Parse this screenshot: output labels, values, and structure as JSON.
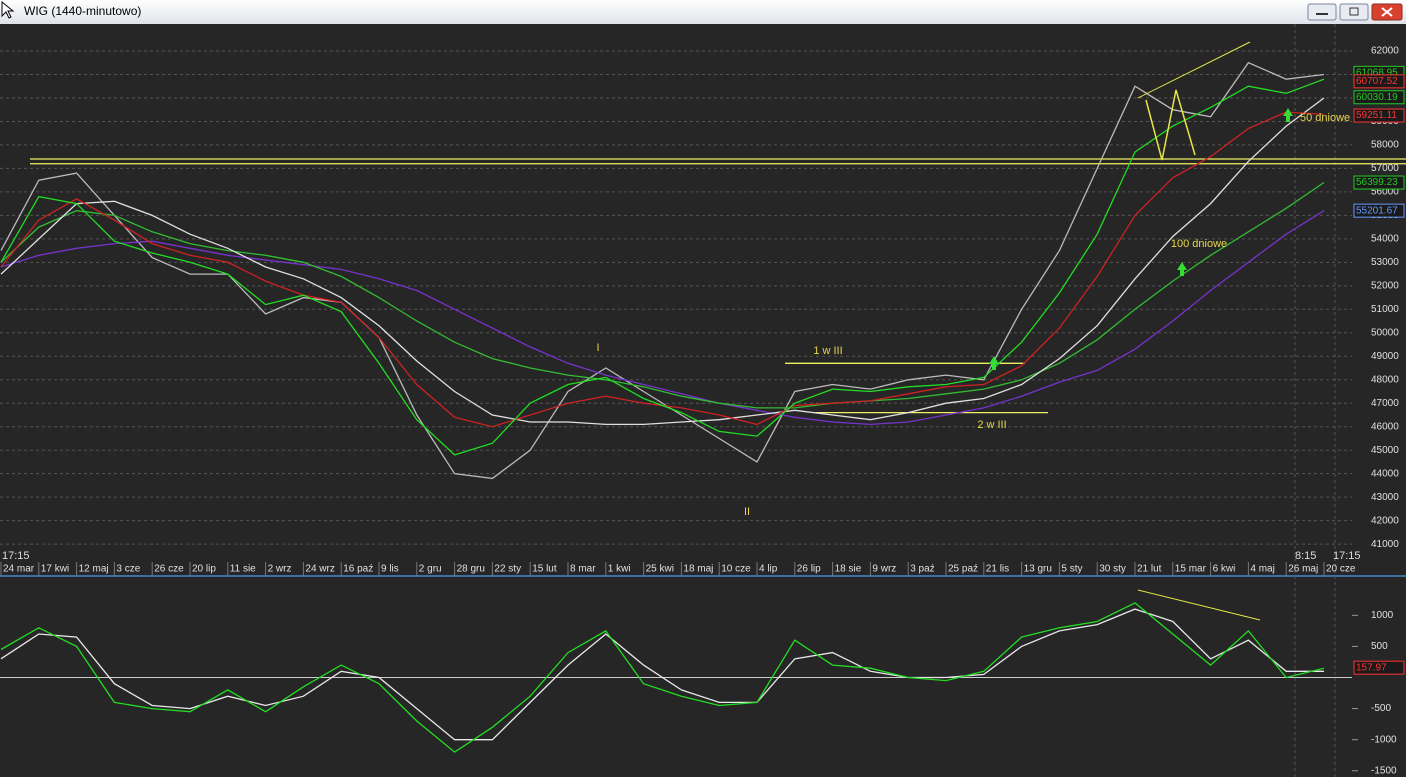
{
  "window": {
    "title": "WIG (1440-minutowo)"
  },
  "chart_data": [
    {
      "type": "line",
      "categories": [
        "24 mar",
        "17 kwi",
        "12 maj",
        "3 cze",
        "26 cze",
        "20 lip",
        "11 sie",
        "2 wrz",
        "24 wrz",
        "16 paź",
        "9 lis",
        "2 gru",
        "28 gru",
        "22 sty",
        "15 lut",
        "8 mar",
        "1 kwi",
        "25 kwi",
        "18 maj",
        "10 cze",
        "4 lip",
        "26 lip",
        "18 sie",
        "9 wrz",
        "3 paź",
        "25 paź",
        "21 lis",
        "13 gru",
        "5 sty",
        "30 sty",
        "21 lut",
        "15 mar",
        "6 kwi",
        "4 maj",
        "26 maj",
        "20 cze"
      ],
      "series": [
        {
          "color": "#bbbbbb",
          "values": [
            53500,
            56500,
            56800,
            55000,
            53200,
            52500,
            52500,
            50800,
            51500,
            51300,
            49800,
            46500,
            44000,
            43800,
            45000,
            47500,
            48500,
            47500,
            46500,
            45500,
            44500,
            47500,
            47800,
            47600,
            48000,
            48200,
            48000,
            51000,
            53500,
            57000,
            60500,
            59500,
            59200,
            61500,
            60800,
            61000
          ]
        },
        {
          "color": "#7733cc",
          "values": [
            52800,
            53300,
            53600,
            53800,
            53900,
            53600,
            53300,
            53100,
            52900,
            52700,
            52300,
            51800,
            51000,
            50200,
            49400,
            48700,
            48200,
            47800,
            47400,
            47000,
            46700,
            46400,
            46200,
            46100,
            46200,
            46500,
            46800,
            47300,
            47900,
            48400,
            49300,
            50500,
            51800,
            53000,
            54200,
            55200
          ]
        },
        {
          "color": "#33bb33",
          "values": [
            53000,
            54500,
            55200,
            55000,
            54300,
            53800,
            53500,
            53300,
            53000,
            52400,
            51500,
            50500,
            49600,
            48900,
            48500,
            48200,
            48000,
            47700,
            47300,
            47000,
            46800,
            46800,
            47000,
            47100,
            47200,
            47400,
            47600,
            48000,
            48700,
            49700,
            51000,
            52200,
            53300,
            54300,
            55300,
            56400
          ]
        },
        {
          "color": "#e0e0e0",
          "values": [
            52500,
            54000,
            55500,
            55600,
            55000,
            54200,
            53600,
            52800,
            52300,
            51500,
            50300,
            48800,
            47500,
            46500,
            46200,
            46200,
            46100,
            46100,
            46200,
            46300,
            46500,
            46700,
            46500,
            46300,
            46600,
            47000,
            47200,
            47800,
            48900,
            50300,
            52300,
            54100,
            55500,
            57300,
            58800,
            60000
          ]
        },
        {
          "color": "#cc2222",
          "values": [
            52800,
            54800,
            55700,
            54800,
            53800,
            53300,
            53000,
            52200,
            51600,
            51300,
            49800,
            47800,
            46400,
            46000,
            46500,
            47000,
            47300,
            47000,
            46800,
            46500,
            46100,
            46900,
            47000,
            47100,
            47400,
            47700,
            47800,
            48600,
            50200,
            52400,
            55000,
            56600,
            57500,
            58700,
            59400,
            59300
          ]
        },
        {
          "color": "#22dd22",
          "values": [
            53000,
            55800,
            55500,
            53900,
            53400,
            53000,
            52500,
            51200,
            51600,
            50900,
            48700,
            46300,
            44800,
            45300,
            47000,
            47800,
            48100,
            47200,
            46600,
            45800,
            45600,
            47000,
            47600,
            47500,
            47700,
            47800,
            48100,
            49600,
            51700,
            54200,
            57700,
            58800,
            59600,
            60500,
            60200,
            60800
          ]
        }
      ],
      "levels": [
        57200,
        57400,
        48700,
        46600
      ],
      "markers": [
        {
          "value": 61068.95,
          "color": "#22cc22"
        },
        {
          "value": 60707.52,
          "color": "#ff3333"
        },
        {
          "value": 60030.19,
          "color": "#22cc22"
        },
        {
          "value": 59251.11,
          "color": "#ff3333"
        },
        {
          "value": 56399.23,
          "color": "#22cc22"
        },
        {
          "value": 55201.67,
          "color": "#6699ff"
        }
      ],
      "annotations": [
        "I",
        "II",
        "1 w III",
        "2 w III",
        "100 dniowe",
        "50 dniowe"
      ],
      "time_labels": [
        "17:15",
        "8:15",
        "17:15"
      ],
      "ylim": [
        40750,
        63150
      ],
      "yticks": [
        41000,
        42000,
        43000,
        44000,
        45000,
        46000,
        47000,
        48000,
        49000,
        50000,
        51000,
        52000,
        53000,
        54000,
        55000,
        56000,
        57000,
        58000,
        59000,
        60000,
        61000,
        62000
      ],
      "grid": true
    },
    {
      "type": "line",
      "series": [
        {
          "color": "#e8e8e8",
          "values": [
            300,
            700,
            650,
            -100,
            -450,
            -500,
            -300,
            -450,
            -300,
            100,
            0,
            -500,
            -1000,
            -1000,
            -400,
            200,
            700,
            200,
            -200,
            -400,
            -400,
            300,
            400,
            100,
            0,
            0,
            50,
            500,
            750,
            850,
            1100,
            900,
            300,
            600,
            100,
            100
          ]
        },
        {
          "color": "#22dd22",
          "values": [
            450,
            800,
            500,
            -400,
            -500,
            -550,
            -200,
            -550,
            -150,
            200,
            -100,
            -700,
            -1200,
            -800,
            -300,
            400,
            750,
            -100,
            -300,
            -450,
            -400,
            600,
            200,
            150,
            0,
            -50,
            100,
            650,
            800,
            900,
            1200,
            700,
            200,
            750,
            0,
            150
          ]
        }
      ],
      "reference_line": 0,
      "markers": [
        {
          "value": 157.97,
          "color": "#ff3333"
        }
      ],
      "ylim": [
        -1600,
        1600
      ],
      "yticks": [
        1000,
        500,
        -500,
        -1000,
        -1500
      ],
      "grid": false
    }
  ]
}
